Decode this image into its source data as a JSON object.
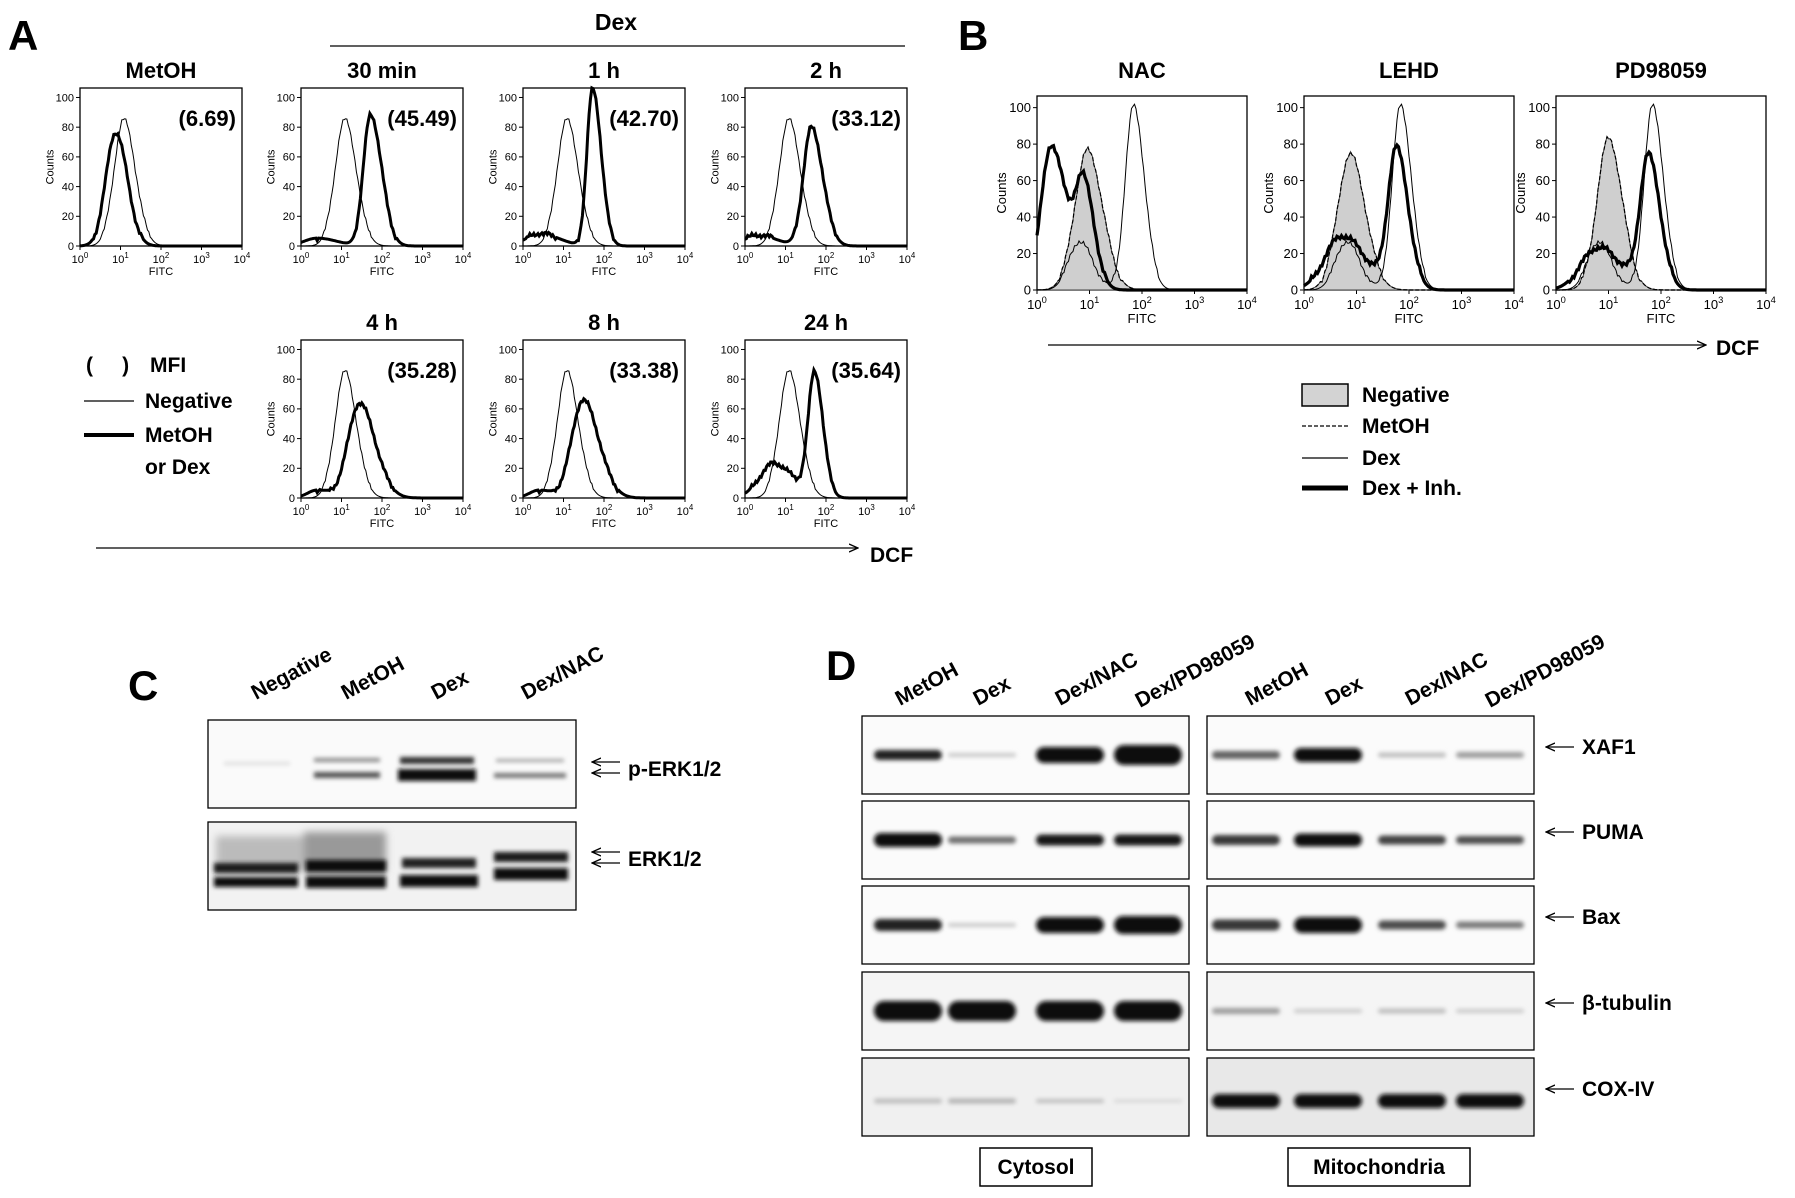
{
  "figure": {
    "panel_a": {
      "letter": "A",
      "dex_header": "Dex",
      "axis_arrow_label": "DCF",
      "y_axis_label": "Counts",
      "x_axis_label": "FITC",
      "y_ticks": [
        "0",
        "20",
        "40",
        "60",
        "80",
        "100"
      ],
      "x_ticks": [
        [
          "10",
          "0"
        ],
        [
          "10",
          "1"
        ],
        [
          "10",
          "2"
        ],
        [
          "10",
          "3"
        ],
        [
          "10",
          "4"
        ]
      ],
      "plots": [
        {
          "title": "MetOH",
          "mfi": "(6.69)"
        },
        {
          "title": "30 min",
          "mfi": "(45.49)"
        },
        {
          "title": "1 h",
          "mfi": "(42.70)"
        },
        {
          "title": "2 h",
          "mfi": "(33.12)"
        },
        {
          "title": "4 h",
          "mfi": "(35.28)"
        },
        {
          "title": "8 h",
          "mfi": "(33.38)"
        },
        {
          "title": "24 h",
          "mfi": "(35.64)"
        }
      ],
      "legend": {
        "mfi_paren": "(     )",
        "mfi": "MFI",
        "negative": "Negative",
        "treated_line1": "MetOH",
        "treated_line2": "or Dex"
      }
    },
    "panel_b": {
      "letter": "B",
      "axis_arrow_label": "DCF",
      "plots": [
        {
          "title": "NAC"
        },
        {
          "title": "LEHD"
        },
        {
          "title": "PD98059"
        }
      ],
      "legend": [
        "Negative",
        "MetOH",
        "Dex",
        "Dex + Inh."
      ]
    },
    "panel_c": {
      "letter": "C",
      "lanes": [
        "Negative",
        "MetOH",
        "Dex",
        "Dex/NAC"
      ],
      "bands": [
        "p-ERK1/2",
        "ERK1/2"
      ]
    },
    "panel_d": {
      "letter": "D",
      "lanes": [
        "MetOH",
        "Dex",
        "Dex/NAC",
        "Dex/PD98059",
        "MetOH",
        "Dex",
        "Dex/NAC",
        "Dex/PD98059"
      ],
      "bands": [
        "XAF1",
        "PUMA",
        "Bax",
        "β-tubulin",
        "COX-IV"
      ],
      "fractions": [
        "Cytosol",
        "Mitochondria"
      ]
    }
  }
}
